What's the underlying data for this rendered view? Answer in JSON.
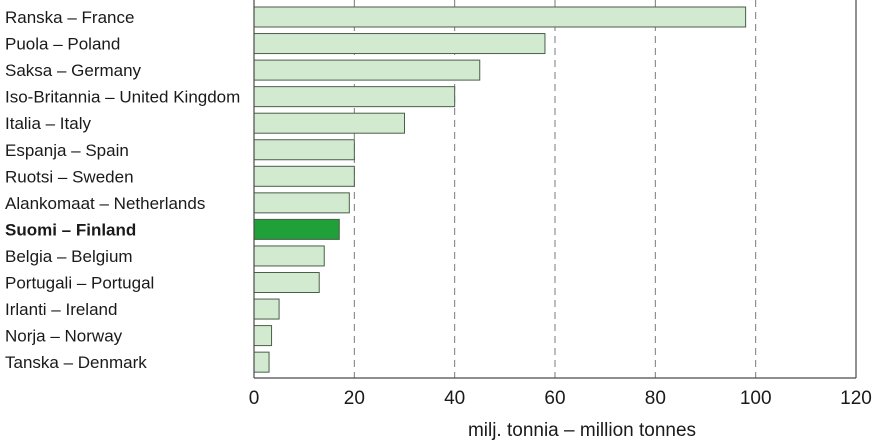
{
  "chart_data": {
    "type": "bar",
    "orientation": "horizontal",
    "categories": [
      "Ranska – France",
      "Puola – Poland",
      "Saksa – Germany",
      "Iso-Britannia – United Kingdom",
      "Italia – Italy",
      "Espanja – Spain",
      "Ruotsi – Sweden",
      "Alankomaat – Netherlands",
      "Suomi – Finland",
      "Belgia – Belgium",
      "Portugali – Portugal",
      "Irlanti – Ireland",
      "Norja – Norway",
      "Tanska – Denmark"
    ],
    "values": [
      98,
      58,
      45,
      40,
      30,
      20,
      20,
      19,
      17,
      14,
      13,
      5,
      3.5,
      3
    ],
    "highlight": "Suomi – Finland",
    "xlabel": "milj. tonnia – million tonnes",
    "ylabel": "",
    "title": "",
    "xlim": [
      0,
      120
    ],
    "xticks": [
      0,
      20,
      40,
      60,
      80,
      100,
      120
    ],
    "grid": "vertical dashed",
    "colors": {
      "bar_fill": "#d2ebd0",
      "bar_stroke": "#4a5e49",
      "highlight_fill": "#1fa038",
      "grid": "#7a7a7a",
      "axis": "#4a4a4a"
    }
  }
}
